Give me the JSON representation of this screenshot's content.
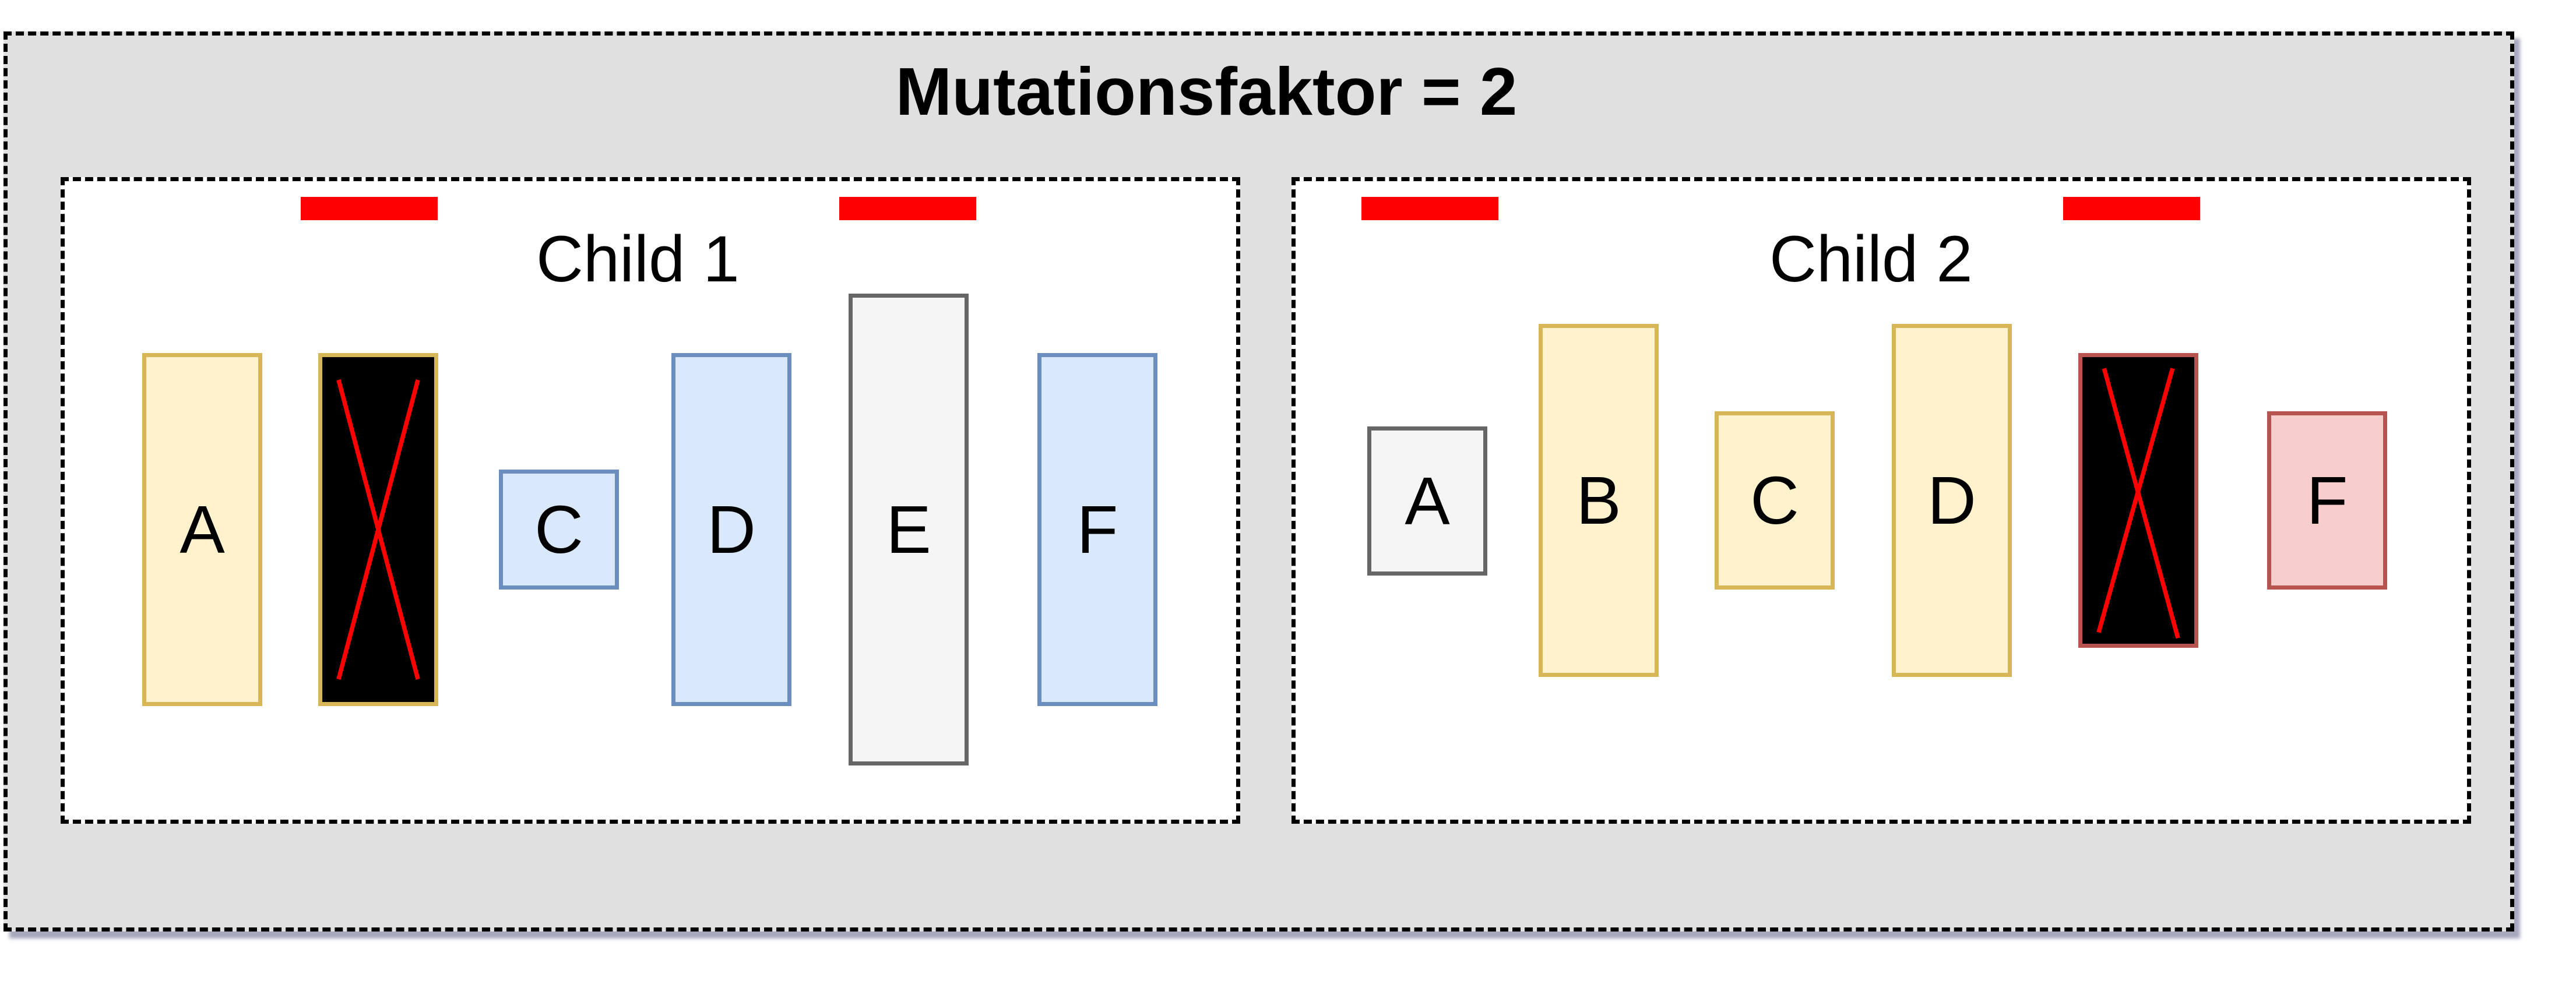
{
  "title": "Mutationsfaktor = 2",
  "children": [
    {
      "label": "Child 1",
      "genes": [
        {
          "label": "A",
          "removed": false,
          "color": "#fff2cc"
        },
        {
          "label": "",
          "removed": true,
          "color": "#000000"
        },
        {
          "label": "C",
          "removed": false,
          "color": "#dae8fc"
        },
        {
          "label": "D",
          "removed": false,
          "color": "#dae8fc"
        },
        {
          "label": "E",
          "removed": false,
          "color": "#f5f5f5"
        },
        {
          "label": "F",
          "removed": false,
          "color": "#dae8fc"
        }
      ],
      "mutation_markers": 2
    },
    {
      "label": "Child 2",
      "genes": [
        {
          "label": "A",
          "removed": false,
          "color": "#f5f5f5"
        },
        {
          "label": "B",
          "removed": false,
          "color": "#fff2cc"
        },
        {
          "label": "C",
          "removed": false,
          "color": "#fff2cc"
        },
        {
          "label": "D",
          "removed": false,
          "color": "#fff2cc"
        },
        {
          "label": "",
          "removed": true,
          "color": "#000000"
        },
        {
          "label": "F",
          "removed": false,
          "color": "#f8cecc"
        }
      ],
      "mutation_markers": 2
    }
  ],
  "colors": {
    "marker": "#ff0000",
    "cross": "#ff0000",
    "background": "#e0e0e0"
  }
}
